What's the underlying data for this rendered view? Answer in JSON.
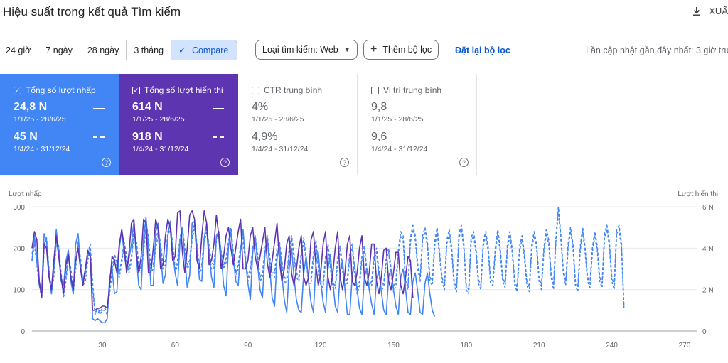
{
  "header": {
    "title": "Hiệu suất trong kết quả Tìm kiếm",
    "export_label": "XUẤ"
  },
  "toolbar": {
    "ranges": [
      "24 giờ",
      "7 ngày",
      "28 ngày",
      "3 tháng",
      "Compare"
    ],
    "active_index": 4,
    "search_type": "Loại tìm kiếm: Web",
    "add_filter": "Thêm bộ lọc",
    "reset_filter": "Đặt lại bộ lọc",
    "last_updated": "Lần cập nhật gần đây nhất: 3 giờ trư"
  },
  "cards": [
    {
      "title": "Tổng số lượt nhấp",
      "checked": true,
      "style": "blue",
      "current": "24,8 N",
      "current_range": "1/1/25 - 28/6/25",
      "previous": "45 N",
      "previous_range": "1/4/24 - 31/12/24"
    },
    {
      "title": "Tổng số lượt hiển thị",
      "checked": true,
      "style": "purple",
      "current": "614 N",
      "current_range": "1/1/25 - 28/6/25",
      "previous": "918 N",
      "previous_range": "1/4/24 - 31/12/24"
    },
    {
      "title": "CTR trung bình",
      "checked": false,
      "style": "plain",
      "current": "4%",
      "current_range": "1/1/25 - 28/6/25",
      "previous": "4,9%",
      "previous_range": "1/4/24 - 31/12/24"
    },
    {
      "title": "Vị trí trung bình",
      "checked": false,
      "style": "plain",
      "current": "9,8",
      "current_range": "1/1/25 - 28/6/25",
      "previous": "9,6",
      "previous_range": "1/4/24 - 31/12/24"
    }
  ],
  "colors": {
    "clicks": "#4285f4",
    "impressions": "#5e35b1",
    "clicks_prev": "#4285f4",
    "impressions_prev": "#4285f4"
  },
  "chart_data": {
    "type": "line",
    "ylabel": "Lượt nhấp",
    "y2label": "Lượt hiển thị",
    "xticks": [
      30,
      60,
      90,
      120,
      150,
      180,
      210,
      240,
      270
    ],
    "xlim": [
      1,
      275
    ],
    "ylim": [
      0,
      300
    ],
    "yticks": [
      0,
      100,
      200,
      300
    ],
    "y2lim": [
      0,
      6
    ],
    "y2ticks": [
      "0",
      "2 N",
      "4 N",
      "6 N"
    ],
    "series": [
      {
        "values": [
          170,
          230,
          180,
          110,
          95,
          235,
          215,
          140,
          90,
          150,
          245,
          190,
          120,
          110,
          170,
          195,
          120,
          90,
          210,
          235,
          160,
          120,
          150,
          180,
          190,
          30,
          25,
          30,
          25,
          20,
          20,
          30,
          130,
          150,
          90,
          95,
          200,
          245,
          185,
          150,
          175,
          210,
          265,
          180,
          110,
          100,
          225,
          275,
          200,
          110,
          110,
          240,
          260,
          190,
          115,
          135,
          230,
          265,
          190,
          140,
          110,
          215,
          250,
          175,
          105,
          135,
          260,
          265,
          200,
          125,
          120,
          225,
          260,
          190,
          130,
          105,
          230,
          240,
          185,
          110,
          85,
          205,
          240,
          175,
          120,
          110,
          195,
          245,
          170,
          115,
          75,
          190,
          230,
          160,
          100,
          80,
          185,
          225,
          150,
          80,
          60,
          175,
          210,
          135,
          75,
          45,
          150,
          200,
          130,
          75,
          50,
          45,
          140,
          180,
          120,
          70,
          45,
          160,
          190,
          120,
          70,
          45,
          150,
          185,
          120,
          60,
          45,
          140,
          170,
          100,
          40,
          40,
          135,
          160,
          100,
          55,
          40,
          130,
          150,
          100,
          65,
          40,
          125,
          145,
          95,
          50,
          40,
          130,
          150,
          100,
          60,
          40,
          130,
          150,
          100,
          45,
          40,
          120,
          140,
          95,
          45,
          40,
          115,
          140,
          90,
          50,
          35
        ]
      },
      {
        "values": [
          200,
          240,
          220,
          120,
          80,
          210,
          200,
          130,
          100,
          170,
          230,
          180,
          130,
          90,
          160,
          185,
          130,
          100,
          170,
          200,
          150,
          110,
          150,
          195,
          180,
          50,
          50,
          55,
          55,
          60,
          60,
          55,
          110,
          180,
          170,
          140,
          210,
          245,
          205,
          140,
          190,
          260,
          270,
          190,
          140,
          180,
          270,
          260,
          140,
          140,
          200,
          270,
          245,
          150,
          160,
          230,
          270,
          250,
          170,
          180,
          285,
          290,
          190,
          140,
          200,
          280,
          290,
          270,
          170,
          150,
          230,
          290,
          260,
          160,
          170,
          210,
          280,
          230,
          150,
          180,
          230,
          250,
          200,
          160,
          200,
          240,
          270,
          150,
          150,
          170,
          230,
          250,
          180,
          150,
          180,
          215,
          250,
          165,
          130,
          170,
          215,
          260,
          170,
          120,
          150,
          210,
          230,
          140,
          110,
          150,
          200,
          230,
          130,
          110,
          130,
          220,
          240,
          160,
          110,
          140,
          210,
          240,
          130,
          100,
          140,
          200,
          240,
          130,
          100,
          140,
          210,
          230,
          120,
          110,
          140,
          200,
          230,
          130,
          110,
          140,
          210,
          210,
          120,
          90,
          130,
          195,
          200,
          120,
          100,
          140,
          190,
          190,
          110,
          90,
          130,
          180,
          170,
          80
        ]
      },
      {
        "values": [
          185,
          215,
          165,
          120,
          90,
          210,
          225,
          150,
          100,
          140,
          220,
          205,
          140,
          90,
          130,
          190,
          150,
          100,
          165,
          215,
          175,
          120,
          135,
          185,
          210,
          115,
          40,
          55,
          45,
          55,
          55,
          45,
          95,
          150,
          185,
          165,
          140,
          175,
          215,
          180,
          150,
          180,
          245,
          220,
          160,
          150,
          200,
          260,
          230,
          150,
          160,
          215,
          245,
          210,
          160,
          170,
          240,
          255,
          210,
          150,
          170,
          225,
          250,
          200,
          160,
          170,
          230,
          260,
          210,
          150,
          160,
          225,
          250,
          205,
          165,
          160,
          225,
          240,
          190,
          160,
          175,
          215,
          250,
          190,
          140,
          160,
          205,
          225,
          180,
          130,
          150,
          200,
          230,
          185,
          130,
          140,
          195,
          230,
          180,
          140,
          140,
          200,
          215,
          170,
          130,
          125,
          200,
          230,
          185,
          140,
          130,
          190,
          225,
          180,
          125,
          125,
          185,
          220,
          165,
          120,
          115,
          180,
          210,
          160,
          115,
          110,
          175,
          205,
          155,
          120,
          125,
          190,
          210,
          150,
          100,
          120,
          180,
          205,
          150,
          110,
          120,
          180,
          200,
          145,
          110,
          115,
          175,
          200,
          150,
          105,
          120,
          195,
          240,
          230,
          120,
          110,
          225,
          255,
          230,
          160,
          130,
          230,
          250,
          215,
          130,
          120,
          215,
          250,
          190,
          130,
          110,
          220,
          245,
          200,
          120,
          105,
          235,
          255,
          210,
          110,
          100,
          225,
          240,
          200,
          125,
          110,
          215,
          240,
          205,
          125,
          120,
          200,
          245,
          200,
          130,
          115,
          210,
          240,
          195,
          120,
          105,
          205,
          230,
          185,
          120,
          105,
          210,
          240,
          210,
          130,
          110,
          200,
          245,
          220,
          140,
          110,
          230,
          300,
          230,
          150,
          120,
          210,
          250,
          210,
          120,
          105,
          205,
          250,
          200,
          130,
          115,
          200,
          240,
          205,
          130,
          115,
          235,
          255,
          215,
          130,
          110,
          245,
          255,
          210,
          60
        ]
      },
      {
        "values": [
          170,
          210,
          160,
          110,
          80,
          200,
          220,
          140,
          90,
          130,
          210,
          200,
          130,
          80,
          120,
          180,
          140,
          90,
          150,
          210,
          160,
          110,
          120,
          170,
          200,
          100,
          45,
          50,
          40,
          50,
          50,
          40,
          90,
          140,
          175,
          150,
          130,
          165,
          205,
          170,
          140,
          170,
          235,
          205,
          150,
          140,
          190,
          250,
          215,
          140,
          150,
          200,
          230,
          200,
          150,
          160,
          230,
          245,
          200,
          140,
          160,
          215,
          240,
          190,
          150,
          160,
          220,
          250,
          200,
          140,
          150,
          215,
          240,
          190,
          150,
          150,
          215,
          230,
          180,
          150,
          165,
          205,
          240,
          180,
          130,
          150,
          195,
          215,
          170,
          120,
          140,
          190,
          220,
          175,
          120,
          130,
          185,
          220,
          170,
          130,
          130,
          190,
          205,
          160,
          120,
          115,
          190,
          220,
          175,
          130,
          120,
          180,
          215,
          170,
          115,
          115,
          175,
          210,
          155,
          110,
          105,
          170,
          200,
          150,
          105,
          100,
          165,
          195,
          145,
          110,
          115,
          180,
          200,
          140,
          90,
          110,
          170,
          195,
          140,
          100,
          110,
          170,
          190,
          135,
          100,
          105,
          165,
          190,
          140,
          95,
          110,
          185,
          230,
          220,
          110,
          100,
          215,
          245,
          220,
          150,
          120,
          220,
          240,
          205,
          120,
          110,
          205,
          240,
          180,
          120,
          100,
          210,
          235,
          190,
          110,
          95,
          225,
          245,
          200,
          100,
          90,
          215,
          230,
          190,
          115,
          100,
          205,
          230,
          195,
          115,
          110,
          190,
          235,
          190,
          120,
          105,
          200,
          230,
          185,
          110,
          95,
          195,
          220,
          175,
          110,
          95,
          200,
          230,
          200,
          120,
          100,
          190,
          235,
          210,
          130,
          100,
          220,
          290,
          220,
          140,
          110,
          200,
          240,
          200,
          110,
          95,
          195,
          240,
          190,
          120,
          105,
          190,
          230,
          195,
          120,
          105,
          225,
          245,
          205,
          120,
          100,
          235,
          245,
          200,
          55
        ]
      }
    ]
  }
}
